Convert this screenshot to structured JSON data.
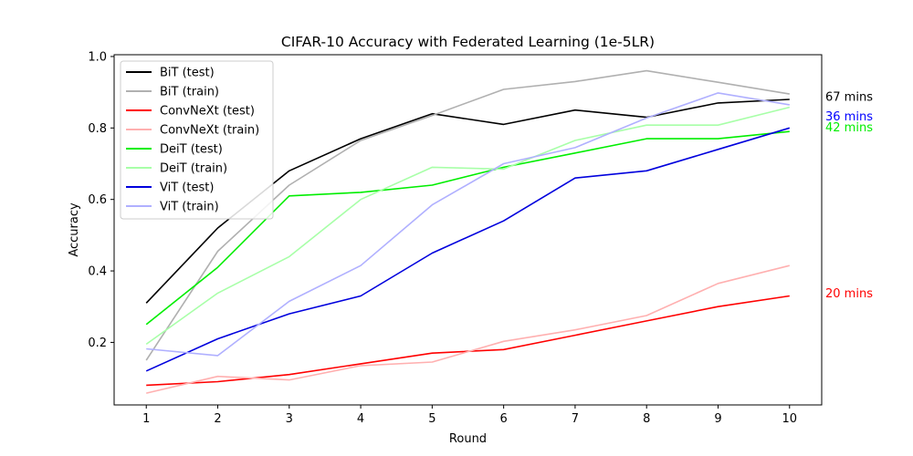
{
  "chart_data": {
    "type": "line",
    "title": "CIFAR-10 Accuracy with Federated Learning (1e-5LR)",
    "xlabel": "Round",
    "ylabel": "Accuracy",
    "xlim": [
      0.55,
      10.45
    ],
    "ylim": [
      0.025,
      1.005
    ],
    "x": [
      1,
      2,
      3,
      4,
      5,
      6,
      7,
      8,
      9,
      10
    ],
    "xticks": [
      1,
      2,
      3,
      4,
      5,
      6,
      7,
      8,
      9,
      10
    ],
    "yticks": [
      0.2,
      0.4,
      0.6,
      0.8,
      1.0
    ],
    "legend_position": "top-left",
    "grid": false,
    "series": [
      {
        "name": "BiT (test)",
        "color": "#000000",
        "values": [
          0.31,
          0.52,
          0.68,
          0.77,
          0.84,
          0.81,
          0.85,
          0.83,
          0.87,
          0.88
        ]
      },
      {
        "name": "BiT (train)",
        "color": "#b0b0b0",
        "values": [
          0.15,
          0.455,
          0.64,
          0.765,
          0.835,
          0.908,
          0.93,
          0.96,
          0.928,
          0.895
        ]
      },
      {
        "name": "ConvNeXt (test)",
        "color": "#ff0000",
        "values": [
          0.08,
          0.09,
          0.11,
          0.14,
          0.17,
          0.18,
          0.22,
          0.26,
          0.3,
          0.33
        ]
      },
      {
        "name": "ConvNeXt (train)",
        "color": "#ffb0b0",
        "values": [
          0.058,
          0.105,
          0.095,
          0.135,
          0.145,
          0.203,
          0.235,
          0.275,
          0.365,
          0.415
        ]
      },
      {
        "name": "DeiT (test)",
        "color": "#00ee00",
        "values": [
          0.25,
          0.41,
          0.61,
          0.62,
          0.64,
          0.69,
          0.73,
          0.77,
          0.77,
          0.79
        ]
      },
      {
        "name": "DeiT (train)",
        "color": "#a8ffa8",
        "values": [
          0.195,
          0.338,
          0.44,
          0.6,
          0.69,
          0.685,
          0.765,
          0.808,
          0.808,
          0.858
        ]
      },
      {
        "name": "ViT (test)",
        "color": "#0000dd",
        "values": [
          0.12,
          0.21,
          0.28,
          0.33,
          0.45,
          0.54,
          0.66,
          0.68,
          0.74,
          0.8
        ]
      },
      {
        "name": "ViT (train)",
        "color": "#b0b0ff",
        "values": [
          0.182,
          0.163,
          0.315,
          0.415,
          0.585,
          0.7,
          0.745,
          0.828,
          0.898,
          0.865
        ]
      }
    ],
    "annotations": [
      {
        "text": "67 mins",
        "color": "#000000",
        "y": 0.887
      },
      {
        "text": "36 mins",
        "color": "#0000ff",
        "y": 0.833
      },
      {
        "text": "42 mins",
        "color": "#00ee00",
        "y": 0.802
      },
      {
        "text": "20 mins",
        "color": "#ff0000",
        "y": 0.337
      }
    ]
  }
}
